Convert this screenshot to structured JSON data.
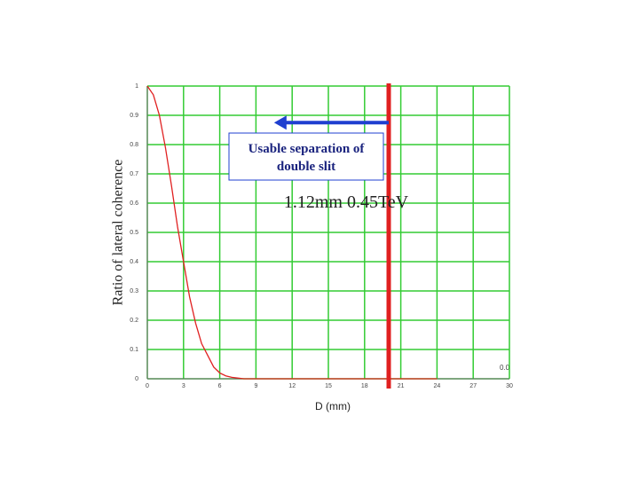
{
  "chart_data": {
    "type": "line",
    "y_label": "Ratio of lateral coherence",
    "x_label": "D (mm)",
    "corner_note": "0.0",
    "annotation_box": "Usable separation of double slit",
    "annotation_text": "1.12mm  0.45TeV",
    "x": [
      0,
      0.5,
      1,
      1.5,
      2,
      2.5,
      3,
      3.5,
      4,
      4.5,
      5,
      5.5,
      6,
      6.5,
      7,
      8,
      10,
      12,
      14,
      16,
      18,
      20,
      22,
      24
    ],
    "series": [
      {
        "color": "#e02020",
        "values": [
          1,
          0.97,
          0.9,
          0.79,
          0.66,
          0.52,
          0.4,
          0.28,
          0.19,
          0.12,
          0.08,
          0.04,
          0.02,
          0.01,
          0.005,
          0,
          0,
          0,
          0,
          0,
          0,
          0,
          0,
          0
        ]
      }
    ],
    "marker_x": 20,
    "marker_color": "#e02020",
    "arrow_x": [
      20,
      10.5
    ],
    "arrow_y": 0.875,
    "arrow_color": "#1f3fd0",
    "xlim": [
      0,
      30
    ],
    "xticks": [
      0,
      3,
      6,
      9,
      12,
      15,
      18,
      21,
      24,
      27,
      30
    ],
    "ylim": [
      0,
      1
    ],
    "yticks": [
      0,
      0.1,
      0.2,
      0.3,
      0.4,
      0.5,
      0.6,
      0.7,
      0.8,
      0.9,
      1
    ],
    "grid": true,
    "grid_color": "#33cc33"
  }
}
